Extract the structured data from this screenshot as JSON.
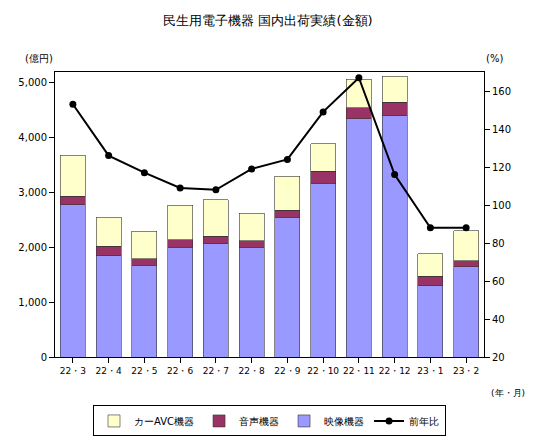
{
  "chart_data": {
    "type": "bar",
    "title": "民生用電子機器 国内出荷実績(金額)",
    "y_label": "(億円)",
    "y2_label": "(%)",
    "x_label": "(年・月)",
    "categories": [
      "22・3",
      "22・4",
      "22・5",
      "22・6",
      "22・7",
      "22・8",
      "22・9",
      "22・10",
      "22・11",
      "22・12",
      "23・1",
      "23・2"
    ],
    "stacked": true,
    "legend": "bottom",
    "grid": false,
    "series": [
      {
        "name": "映像機器",
        "type": "bar",
        "color": "#9999ff",
        "values": [
          2780,
          1850,
          1670,
          2000,
          2070,
          2000,
          2550,
          3170,
          4350,
          4400,
          1300,
          1650
        ]
      },
      {
        "name": "音声機器",
        "type": "bar",
        "color": "#993366",
        "values": [
          150,
          170,
          120,
          140,
          130,
          120,
          130,
          220,
          200,
          250,
          170,
          110
        ]
      },
      {
        "name": "カーAVC機器",
        "type": "bar",
        "color": "#ffffcc",
        "values": [
          750,
          530,
          500,
          630,
          670,
          500,
          620,
          500,
          520,
          470,
          410,
          540
        ]
      },
      {
        "name": "前年比",
        "type": "line",
        "axis": "y2",
        "color": "#000000",
        "marker": "circle",
        "line_style": "solid",
        "values": [
          153,
          126,
          117,
          109,
          108,
          119,
          124,
          149,
          167,
          116,
          88,
          88
        ]
      }
    ],
    "ylim": [
      0,
      5200
    ],
    "yticks": [
      0,
      {
        "value": 1000,
        "label": "1,000"
      },
      {
        "value": 2000,
        "label": "2,000"
      },
      {
        "value": 3000,
        "label": "3,000"
      },
      {
        "value": 4000,
        "label": "4,000"
      },
      {
        "value": 5000,
        "label": "5,000"
      }
    ],
    "y2lim": [
      20,
      170
    ],
    "y2ticks": [
      20,
      40,
      60,
      80,
      100,
      120,
      140,
      160
    ]
  }
}
